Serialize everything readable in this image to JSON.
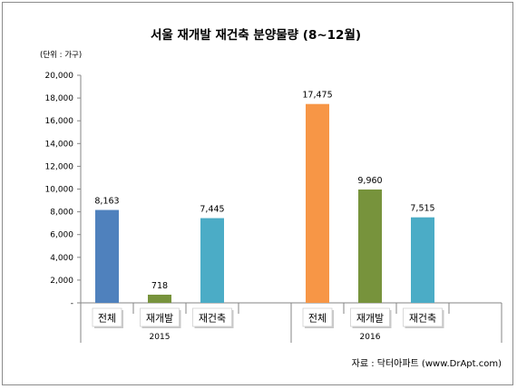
{
  "chart_data": {
    "type": "bar",
    "title": "서울 재개발 재건축 분양물량 (8~12월)",
    "unit_label": "(단위 : 가구)",
    "source": "자료 : 닥터아파트 (www.DrApt.com)",
    "ylim": [
      0,
      20000
    ],
    "yticks": [
      "20,000",
      "18,000",
      "16,000",
      "14,000",
      "12,000",
      "10,000",
      "8,000",
      "6,000",
      "4,000",
      "2,000",
      "-"
    ],
    "ytick_values": [
      20000,
      18000,
      16000,
      14000,
      12000,
      10000,
      8000,
      6000,
      4000,
      2000,
      0
    ],
    "grid": false,
    "groups": [
      {
        "year": "2015",
        "categories": [
          "전체",
          "재개발",
          "재건축"
        ],
        "values": [
          8163,
          718,
          7445
        ],
        "labels": [
          "8,163",
          "718",
          "7,445"
        ]
      },
      {
        "year": "2016",
        "categories": [
          "전체",
          "재개발",
          "재건축"
        ],
        "values": [
          17475,
          9960,
          7515
        ],
        "labels": [
          "17,475",
          "9,960",
          "7,515"
        ]
      }
    ],
    "category_colors": {
      "전체": [
        "#4f81bd",
        "#f79646"
      ],
      "재개발": [
        "#77933c",
        "#77933c"
      ],
      "재건축": [
        "#4bacc6",
        "#4bacc6"
      ]
    }
  }
}
